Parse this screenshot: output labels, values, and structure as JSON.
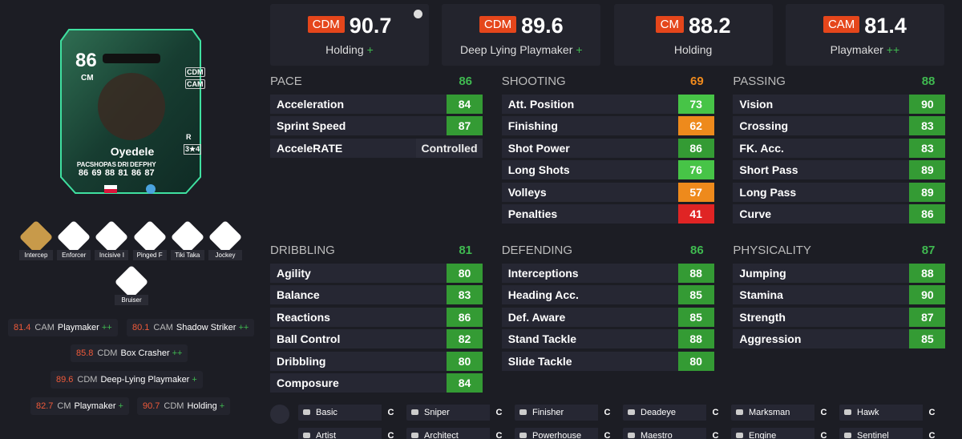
{
  "card": {
    "rating": 86,
    "position": "CM",
    "alt_positions": [
      "CDM",
      "CAM"
    ],
    "skill_foot": "R",
    "skill_weak": "3★4",
    "name": "Oyedele",
    "stats": [
      {
        "label": "PAC",
        "value": 86
      },
      {
        "label": "SHO",
        "value": 69
      },
      {
        "label": "PAS",
        "value": 88
      },
      {
        "label": "DRI",
        "value": 81
      },
      {
        "label": "DEF",
        "value": 86
      },
      {
        "label": "PHY",
        "value": 87
      }
    ]
  },
  "playstyles": [
    "Intercep",
    "Enforcer",
    "Incisive I",
    "Pinged F",
    "Tiki Taka",
    "Jockey",
    "Bruiser"
  ],
  "roles": [
    {
      "rating": 81.4,
      "position": "CAM",
      "role": "Playmaker",
      "plus": "++"
    },
    {
      "rating": 80.1,
      "position": "CAM",
      "role": "Shadow Striker",
      "plus": "++"
    },
    {
      "rating": 85.8,
      "position": "CDM",
      "role": "Box Crasher",
      "plus": "++"
    },
    {
      "rating": 89.6,
      "position": "CDM",
      "role": "Deep-Lying Playmaker",
      "plus": "+"
    },
    {
      "rating": 82.7,
      "position": "CM",
      "role": "Playmaker",
      "plus": "+"
    },
    {
      "rating": 90.7,
      "position": "CDM",
      "role": "Holding",
      "plus": "+"
    }
  ],
  "top_roles": [
    {
      "position": "CDM",
      "rating": 90.7,
      "role": "Holding",
      "plus": "+"
    },
    {
      "position": "CDM",
      "rating": 89.6,
      "role": "Deep Lying Playmaker",
      "plus": "+"
    },
    {
      "position": "CM",
      "rating": 88.2,
      "role": "Holding"
    },
    {
      "position": "CAM",
      "rating": 81.4,
      "role": "Playmaker",
      "plus": "++"
    }
  ],
  "stat_groups": [
    {
      "name": "PACE",
      "value": 86,
      "stats": [
        {
          "label": "Acceleration",
          "value": 84
        },
        {
          "label": "Sprint Speed",
          "value": 87
        },
        {
          "label": "AcceleRATE",
          "value": "Controlled"
        }
      ]
    },
    {
      "name": "SHOOTING",
      "value": 69,
      "stats": [
        {
          "label": "Att. Position",
          "value": 73
        },
        {
          "label": "Finishing",
          "value": 62
        },
        {
          "label": "Shot Power",
          "value": 86
        },
        {
          "label": "Long Shots",
          "value": 76
        },
        {
          "label": "Volleys",
          "value": 57
        },
        {
          "label": "Penalties",
          "value": 41
        }
      ]
    },
    {
      "name": "PASSING",
      "value": 88,
      "stats": [
        {
          "label": "Vision",
          "value": 90
        },
        {
          "label": "Crossing",
          "value": 83
        },
        {
          "label": "FK. Acc.",
          "value": 83
        },
        {
          "label": "Short Pass",
          "value": 89
        },
        {
          "label": "Long Pass",
          "value": 89
        },
        {
          "label": "Curve",
          "value": 86
        }
      ]
    },
    {
      "name": "DRIBBLING",
      "value": 81,
      "stats": [
        {
          "label": "Agility",
          "value": 80
        },
        {
          "label": "Balance",
          "value": 83
        },
        {
          "label": "Reactions",
          "value": 86
        },
        {
          "label": "Ball Control",
          "value": 82
        },
        {
          "label": "Dribbling",
          "value": 80
        },
        {
          "label": "Composure",
          "value": 84
        }
      ]
    },
    {
      "name": "DEFENDING",
      "value": 86,
      "stats": [
        {
          "label": "Interceptions",
          "value": 88
        },
        {
          "label": "Heading Acc.",
          "value": 85
        },
        {
          "label": "Def. Aware",
          "value": 85
        },
        {
          "label": "Stand Tackle",
          "value": 88
        },
        {
          "label": "Slide Tackle",
          "value": 80
        }
      ]
    },
    {
      "name": "PHYSICALITY",
      "value": 87,
      "stats": [
        {
          "label": "Jumping",
          "value": 88
        },
        {
          "label": "Stamina",
          "value": 90
        },
        {
          "label": "Strength",
          "value": 87
        },
        {
          "label": "Aggression",
          "value": 85
        }
      ]
    }
  ],
  "chem_styles": [
    {
      "name": "Basic",
      "grade": "C"
    },
    {
      "name": "Sniper",
      "grade": "C"
    },
    {
      "name": "Finisher",
      "grade": "C"
    },
    {
      "name": "Deadeye",
      "grade": "C"
    },
    {
      "name": "Marksman",
      "grade": "C"
    },
    {
      "name": "Hawk",
      "grade": "C"
    },
    {
      "name": "Artist",
      "grade": "C"
    },
    {
      "name": "Architect",
      "grade": "C"
    },
    {
      "name": "Powerhouse",
      "grade": "C"
    },
    {
      "name": "Maestro",
      "grade": "C"
    },
    {
      "name": "Engine",
      "grade": "C"
    },
    {
      "name": "Sentinel",
      "grade": "C"
    }
  ]
}
